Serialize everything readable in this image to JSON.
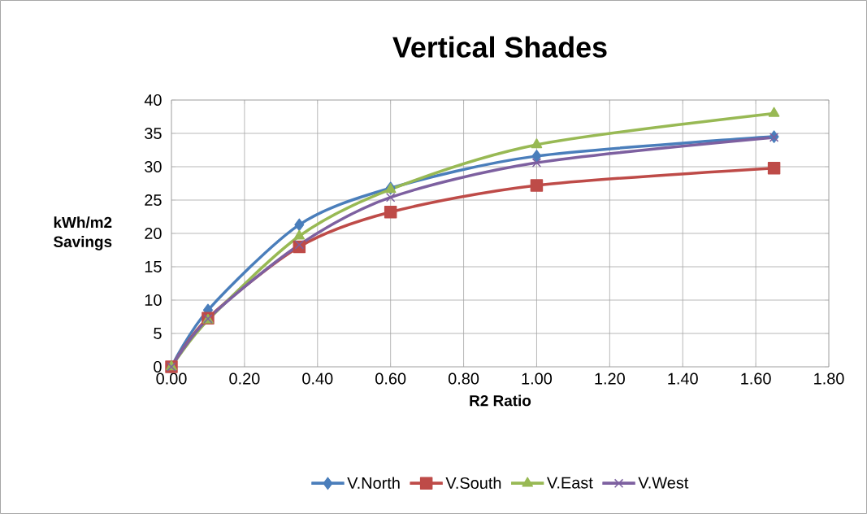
{
  "chart_data": {
    "type": "line",
    "title": "Vertical Shades",
    "xlabel": "R2 Ratio",
    "ylabel": "kWh/m2 Savings",
    "x": [
      0.0,
      0.1,
      0.35,
      0.6,
      1.0,
      1.65
    ],
    "series": [
      {
        "name": "V.North",
        "color": "#4a7ebb",
        "marker": "diamond",
        "values": [
          0,
          8.5,
          21.3,
          26.8,
          31.6,
          34.5
        ]
      },
      {
        "name": "V.South",
        "color": "#be4b48",
        "marker": "square",
        "values": [
          0,
          7.3,
          18.0,
          23.2,
          27.2,
          29.8
        ]
      },
      {
        "name": "V.East",
        "color": "#98b954",
        "marker": "triangle",
        "values": [
          0,
          7.0,
          19.6,
          26.6,
          33.3,
          38.0
        ]
      },
      {
        "name": "V.West",
        "color": "#7d60a0",
        "marker": "cross",
        "values": [
          0,
          7.2,
          18.3,
          25.4,
          30.6,
          34.4
        ]
      }
    ],
    "xlim": [
      0,
      1.8
    ],
    "xticks": [
      {
        "value": 0,
        "label": "0.00"
      },
      {
        "value": 0.2,
        "label": "0.20"
      },
      {
        "value": 0.4,
        "label": "0.40"
      },
      {
        "value": 0.6,
        "label": "0.60"
      },
      {
        "value": 0.8,
        "label": "0.80"
      },
      {
        "value": 1.0,
        "label": "1.00"
      },
      {
        "value": 1.2,
        "label": "1.20"
      },
      {
        "value": 1.4,
        "label": "1.40"
      },
      {
        "value": 1.6,
        "label": "1.60"
      },
      {
        "value": 1.8,
        "label": "1.80"
      }
    ],
    "ylim": [
      0,
      40
    ],
    "yticks": [
      0,
      5,
      10,
      15,
      20,
      25,
      30,
      35,
      40
    ],
    "grid": true,
    "legend": "bottom",
    "line_style": "solid"
  }
}
